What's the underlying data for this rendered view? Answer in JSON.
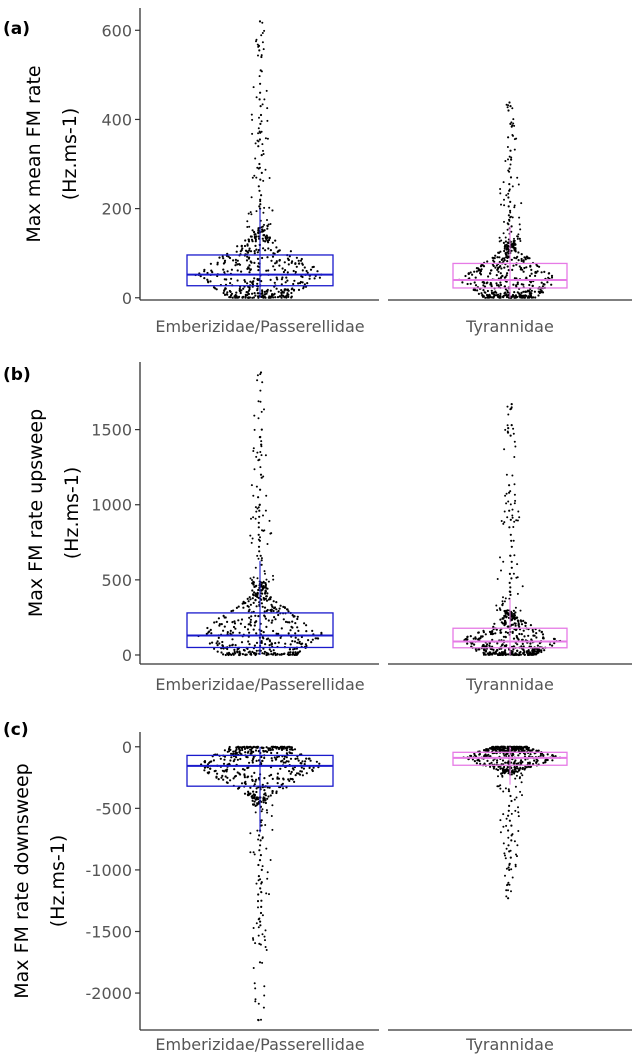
{
  "figure": {
    "colors": {
      "emberizidae": "#1a1acc",
      "tyrannidae": "#e67ae6",
      "points": "#000000",
      "axis": "#333333"
    }
  },
  "chart_data": [
    {
      "type": "boxplot",
      "panel_label": "(a)",
      "ylabel_line1": "Max mean FM rate",
      "ylabel_line2": "(Hz.ms-1)",
      "categories": [
        "Emberizidae/Passerellidae",
        "Tyrannidae"
      ],
      "ylim": [
        -5,
        650
      ],
      "yticks": [
        0,
        200,
        400,
        600
      ],
      "ytick_labels": [
        "0",
        "200",
        "400",
        "600"
      ],
      "series": [
        {
          "category": "Emberizidae/Passerellidae",
          "q1": 27,
          "median": 52,
          "q3": 96,
          "min": 0,
          "max": 620,
          "outliers": [
            620,
            565,
            555,
            540,
            510,
            480,
            460,
            445,
            430,
            410,
            390,
            370,
            355,
            340,
            320,
            300,
            290,
            280,
            265,
            250,
            240,
            230,
            220,
            210,
            205,
            200
          ]
        },
        {
          "category": "Tyrannidae",
          "q1": 22,
          "median": 40,
          "q3": 77,
          "min": 0,
          "max": 438,
          "outliers": [
            438,
            430,
            420,
            390,
            360,
            330,
            310,
            290,
            270,
            255,
            240,
            225,
            215,
            205,
            195,
            185,
            175,
            165,
            160
          ]
        }
      ]
    },
    {
      "type": "boxplot",
      "panel_label": "(b)",
      "ylabel_line1": "Max FM rate upsweep",
      "ylabel_line2": "(Hz.ms-1)",
      "categories": [
        "Emberizidae/Passerellidae",
        "Tyrannidae"
      ],
      "ylim": [
        -60,
        1950
      ],
      "yticks": [
        0,
        500,
        1000,
        1500
      ],
      "ytick_labels": [
        "0",
        "500",
        "1000",
        "1500"
      ],
      "series": [
        {
          "category": "Emberizidae/Passerellidae",
          "q1": 50,
          "median": 130,
          "q3": 280,
          "min": 0,
          "max": 1880,
          "outliers": [
            1880,
            1500,
            1450,
            1400,
            1300,
            1200,
            1180,
            1100,
            1050,
            1000,
            960,
            920,
            880,
            850,
            800,
            760,
            720,
            690,
            660,
            630,
            600
          ]
        },
        {
          "category": "Tyrannidae",
          "q1": 48,
          "median": 90,
          "q3": 178,
          "min": 0,
          "max": 1670,
          "outliers": [
            1670,
            1640,
            1530,
            1510,
            1480,
            1460,
            1130,
            1080,
            960,
            900,
            850,
            800,
            760,
            720,
            660,
            620,
            580,
            540,
            510,
            480,
            450,
            420,
            400
          ]
        }
      ]
    },
    {
      "type": "boxplot",
      "panel_label": "(c)",
      "ylabel_line1": "Max FM rate downsweep",
      "ylabel_line2": "(Hz.ms-1)",
      "categories": [
        "Emberizidae/Passerellidae",
        "Tyrannidae"
      ],
      "ylim": [
        -2300,
        120
      ],
      "yticks": [
        0,
        -500,
        -1000,
        -1500,
        -2000
      ],
      "ytick_labels": [
        "0",
        "-500",
        "-1000",
        "-1500",
        "-2000"
      ],
      "series": [
        {
          "category": "Emberizidae/Passerellidae",
          "q1": -320,
          "median": -155,
          "q3": -70,
          "min": -2220,
          "max": 0,
          "outliers": [
            -2220,
            -1750,
            -1600,
            -1450,
            -1420,
            -1400,
            -1350,
            -1300,
            -1250,
            -1200,
            -1150,
            -1100,
            -1050,
            -1000,
            -960,
            -920,
            -880,
            -840,
            -800,
            -760,
            -720,
            -680,
            -640
          ]
        },
        {
          "category": "Tyrannidae",
          "q1": -150,
          "median": -90,
          "q3": -45,
          "min": -1230,
          "max": 0,
          "outliers": [
            -1230,
            -1000,
            -980,
            -950,
            -900,
            -850,
            -800,
            -760,
            -720,
            -680,
            -640,
            -600,
            -560,
            -520,
            -480,
            -440,
            -400,
            -360
          ]
        }
      ]
    }
  ]
}
